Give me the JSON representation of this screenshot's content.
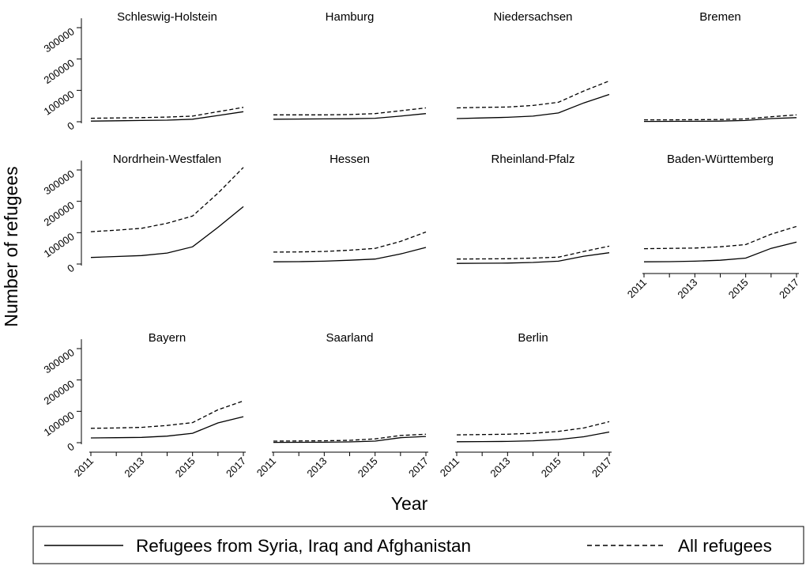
{
  "chart_data": {
    "type": "line",
    "ylabel": "Number of refugees",
    "xlabel": "Year",
    "ylim": [
      0,
      320000
    ],
    "yticks": [
      0,
      100000,
      200000,
      300000
    ],
    "xticks": [
      2011,
      2013,
      2015,
      2017
    ],
    "x": [
      2011,
      2012,
      2013,
      2014,
      2015,
      2016,
      2017
    ],
    "legend": {
      "placement": "bottom",
      "entries": [
        {
          "label": "Refugees from Syria, Iraq and Afghanistan",
          "style": "solid"
        },
        {
          "label": "All refugees",
          "style": "dashed"
        }
      ]
    },
    "panels": [
      {
        "title": "Schleswig-Holstein",
        "syria": [
          2000,
          3000,
          4000,
          5000,
          8000,
          20000,
          32000
        ],
        "all": [
          11000,
          12000,
          13000,
          15000,
          18000,
          32000,
          46000
        ]
      },
      {
        "title": "Hamburg",
        "syria": [
          8000,
          8500,
          9000,
          9500,
          11000,
          18000,
          26000
        ],
        "all": [
          22000,
          22000,
          22000,
          23000,
          26000,
          35000,
          44000
        ]
      },
      {
        "title": "Niedersachsen",
        "syria": [
          10000,
          12000,
          14000,
          18000,
          28000,
          60000,
          87000
        ],
        "all": [
          44000,
          46000,
          47000,
          52000,
          62000,
          98000,
          130000
        ]
      },
      {
        "title": "Bremen",
        "syria": [
          1000,
          1200,
          1500,
          2000,
          4000,
          10000,
          13000
        ],
        "all": [
          6000,
          6000,
          6500,
          7000,
          9000,
          16000,
          22000
        ]
      },
      {
        "title": "Nordrhein-Westfalen",
        "syria": [
          21000,
          24000,
          27000,
          35000,
          55000,
          117000,
          183000
        ],
        "all": [
          103000,
          108000,
          114000,
          130000,
          153000,
          226000,
          308000
        ]
      },
      {
        "title": "Hessen",
        "syria": [
          7000,
          7500,
          9000,
          12000,
          16000,
          32000,
          53000
        ],
        "all": [
          38000,
          38500,
          40000,
          44000,
          50000,
          72000,
          102000
        ]
      },
      {
        "title": "Rheinland-Pfalz",
        "syria": [
          2000,
          2500,
          3000,
          5000,
          9000,
          25000,
          36000
        ],
        "all": [
          16000,
          16500,
          17000,
          19000,
          22000,
          40000,
          57000
        ]
      },
      {
        "title": "Baden-Württemberg",
        "syria": [
          7000,
          7500,
          9000,
          12000,
          19000,
          50000,
          70000
        ],
        "all": [
          49000,
          50000,
          51000,
          55000,
          62000,
          95000,
          120000
        ]
      },
      {
        "title": "Bayern",
        "syria": [
          15000,
          16000,
          17000,
          21000,
          30000,
          63000,
          83000
        ],
        "all": [
          46000,
          47000,
          49000,
          55000,
          64000,
          105000,
          133000
        ]
      },
      {
        "title": "Saarland",
        "syria": [
          1000,
          1200,
          1500,
          2500,
          5000,
          16000,
          20000
        ],
        "all": [
          5000,
          5500,
          6000,
          7500,
          12000,
          23000,
          27000
        ]
      },
      {
        "title": "Berlin",
        "syria": [
          3000,
          3500,
          4000,
          6000,
          10000,
          19000,
          34000
        ],
        "all": [
          25000,
          26000,
          27000,
          30000,
          36000,
          47000,
          67000
        ]
      }
    ]
  }
}
